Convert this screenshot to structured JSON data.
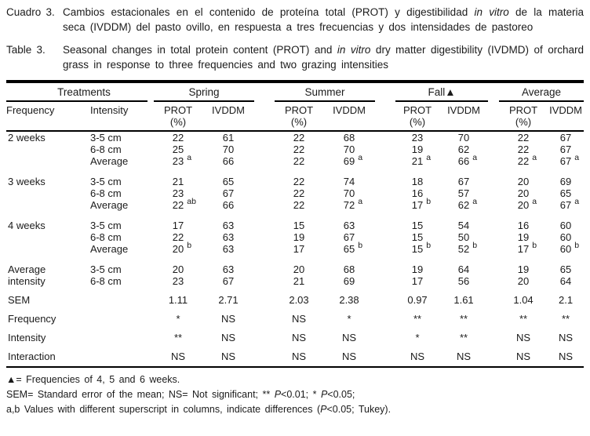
{
  "captions": {
    "es": {
      "label": "Cuadro 3.",
      "before_italic": "Cambios estacionales en el contenido de proteína total (PROT) y digestibilidad ",
      "italic": "in vitro",
      "after_italic": " de la materia seca (IVDDM) del pasto ovillo, en respuesta a tres frecuencias y dos intensidades de pastoreo"
    },
    "en": {
      "label": "Table 3.",
      "before_italic": "Seasonal changes in total protein content (PROT) and ",
      "italic": "in vitro",
      "after_italic": " dry matter digestibility (IVDMD) of orchard grass in response to three frequencies and two grazing intensities"
    }
  },
  "table": {
    "groups": {
      "treatments": "Treatments",
      "spring": "Spring",
      "summer": "Summer",
      "fall": "Fall▲",
      "average": "Average"
    },
    "columns": {
      "frequency": "Frequency",
      "intensity": "Intensity",
      "prot": "PROT",
      "prot_unit": "(%)",
      "ivddm": "IVDDM"
    },
    "rows": [
      {
        "cls": "",
        "frequency": "2 weeks",
        "intensity": "3-5 cm",
        "values": [
          {
            "v": "22"
          },
          {
            "v": "61"
          },
          {
            "v": "22"
          },
          {
            "v": "68"
          },
          {
            "v": "23"
          },
          {
            "v": "70"
          },
          {
            "v": "22"
          },
          {
            "v": "67"
          }
        ]
      },
      {
        "cls": "",
        "frequency": "",
        "intensity": "6-8 cm",
        "values": [
          {
            "v": "25"
          },
          {
            "v": "70"
          },
          {
            "v": "22"
          },
          {
            "v": "70"
          },
          {
            "v": "19"
          },
          {
            "v": "62"
          },
          {
            "v": "22"
          },
          {
            "v": "67"
          }
        ]
      },
      {
        "cls": "",
        "frequency": "",
        "intensity": "Average",
        "values": [
          {
            "v": "23",
            "s": "a"
          },
          {
            "v": "66"
          },
          {
            "v": "22"
          },
          {
            "v": "69",
            "s": "a"
          },
          {
            "v": "21",
            "s": "a"
          },
          {
            "v": "66",
            "s": "a"
          },
          {
            "v": "22",
            "s": "a"
          },
          {
            "v": "67",
            "s": "a"
          }
        ]
      },
      {
        "cls": "gap",
        "frequency": "3 weeks",
        "intensity": "3-5 cm",
        "values": [
          {
            "v": "21"
          },
          {
            "v": "65"
          },
          {
            "v": "22"
          },
          {
            "v": "74"
          },
          {
            "v": "18"
          },
          {
            "v": "67"
          },
          {
            "v": "20"
          },
          {
            "v": "69"
          }
        ]
      },
      {
        "cls": "",
        "frequency": "",
        "intensity": "6-8 cm",
        "values": [
          {
            "v": "23"
          },
          {
            "v": "67"
          },
          {
            "v": "22"
          },
          {
            "v": "70"
          },
          {
            "v": "16"
          },
          {
            "v": "57"
          },
          {
            "v": "20"
          },
          {
            "v": "65"
          }
        ]
      },
      {
        "cls": "",
        "frequency": "",
        "intensity": "Average",
        "values": [
          {
            "v": "22",
            "s": "ab"
          },
          {
            "v": "66"
          },
          {
            "v": "22"
          },
          {
            "v": "72",
            "s": "a"
          },
          {
            "v": "17",
            "s": "b"
          },
          {
            "v": "62",
            "s": "a"
          },
          {
            "v": "20",
            "s": "a"
          },
          {
            "v": "67",
            "s": "a"
          }
        ]
      },
      {
        "cls": "gap",
        "frequency": "4 weeks",
        "intensity": "3-5 cm",
        "values": [
          {
            "v": "17"
          },
          {
            "v": "63"
          },
          {
            "v": "15"
          },
          {
            "v": "63"
          },
          {
            "v": "15"
          },
          {
            "v": "54"
          },
          {
            "v": "16"
          },
          {
            "v": "60"
          }
        ]
      },
      {
        "cls": "",
        "frequency": "",
        "intensity": "6-8 cm",
        "values": [
          {
            "v": "22"
          },
          {
            "v": "63"
          },
          {
            "v": "19"
          },
          {
            "v": "67"
          },
          {
            "v": "15"
          },
          {
            "v": "50"
          },
          {
            "v": "19"
          },
          {
            "v": "60"
          }
        ]
      },
      {
        "cls": "",
        "frequency": "",
        "intensity": "Average",
        "values": [
          {
            "v": "20",
            "s": "b"
          },
          {
            "v": "63"
          },
          {
            "v": "17"
          },
          {
            "v": "65",
            "s": "b"
          },
          {
            "v": "15",
            "s": "b"
          },
          {
            "v": "52",
            "s": "b"
          },
          {
            "v": "17",
            "s": "b"
          },
          {
            "v": "60",
            "s": "b"
          }
        ]
      },
      {
        "cls": "gap",
        "frequency": "Average",
        "intensity": "3-5 cm",
        "values": [
          {
            "v": "20"
          },
          {
            "v": "63"
          },
          {
            "v": "20"
          },
          {
            "v": "68"
          },
          {
            "v": "19"
          },
          {
            "v": "64"
          },
          {
            "v": "19"
          },
          {
            "v": "65"
          }
        ]
      },
      {
        "cls": "",
        "frequency": "intensity",
        "intensity": "6-8 cm",
        "values": [
          {
            "v": "23"
          },
          {
            "v": "67"
          },
          {
            "v": "21"
          },
          {
            "v": "69"
          },
          {
            "v": "17"
          },
          {
            "v": "56"
          },
          {
            "v": "20"
          },
          {
            "v": "64"
          }
        ]
      },
      {
        "cls": "gap stat",
        "frequency": "SEM",
        "intensity": "",
        "values": [
          {
            "v": "1.11"
          },
          {
            "v": "2.71"
          },
          {
            "v": "2.03"
          },
          {
            "v": "2.38"
          },
          {
            "v": "0.97"
          },
          {
            "v": "1.61"
          },
          {
            "v": "1.04"
          },
          {
            "v": "2.1"
          }
        ]
      },
      {
        "cls": "stat",
        "frequency": "Frequency",
        "intensity": "",
        "values": [
          {
            "v": "*"
          },
          {
            "v": "NS"
          },
          {
            "v": "NS"
          },
          {
            "v": "*"
          },
          {
            "v": "**"
          },
          {
            "v": "**"
          },
          {
            "v": "**"
          },
          {
            "v": "**"
          }
        ]
      },
      {
        "cls": "stat",
        "frequency": "Intensity",
        "intensity": "",
        "values": [
          {
            "v": "**"
          },
          {
            "v": "NS"
          },
          {
            "v": "NS"
          },
          {
            "v": "NS"
          },
          {
            "v": "*"
          },
          {
            "v": "**"
          },
          {
            "v": "NS"
          },
          {
            "v": "NS"
          }
        ]
      },
      {
        "cls": "stat last",
        "frequency": "Interaction",
        "intensity": "",
        "values": [
          {
            "v": "NS"
          },
          {
            "v": "NS"
          },
          {
            "v": "NS"
          },
          {
            "v": "NS"
          },
          {
            "v": "NS"
          },
          {
            "v": "NS"
          },
          {
            "v": "NS"
          },
          {
            "v": "NS"
          }
        ]
      }
    ]
  },
  "footnotes": {
    "fn1": "▲= Frequencies of 4, 5 and 6 weeks.",
    "fn2_p1": "SEM= Standard error of the mean; NS= Not significant; ** ",
    "fn2_p2": "P",
    "fn2_p3": "<0.01; * ",
    "fn2_p4": "P",
    "fn2_p5": "<0.05;",
    "fn3_p1": "a,b Values with different superscript in columns, indicate differences (",
    "fn3_p2": "P",
    "fn3_p3": "<0.05; Tukey)."
  }
}
